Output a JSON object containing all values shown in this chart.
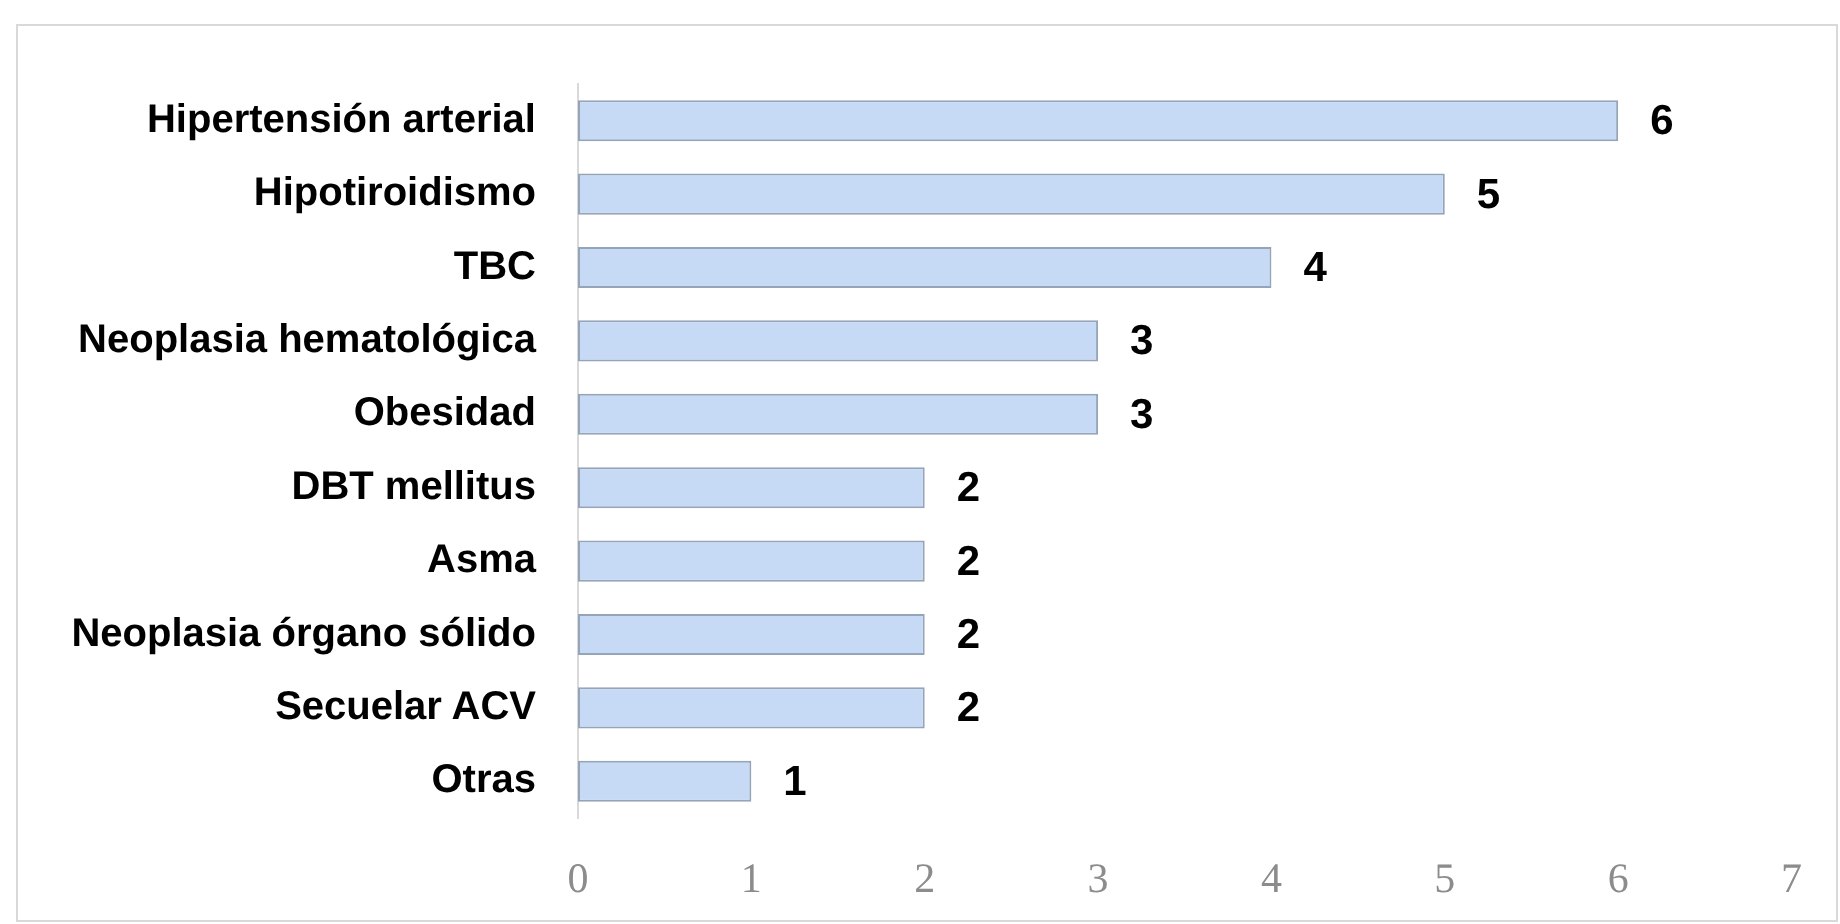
{
  "chart_data": {
    "type": "bar",
    "orientation": "horizontal",
    "categories": [
      "Hipertensión arterial",
      "Hipotiroidismo",
      "TBC",
      "Neoplasia hematológica",
      "Obesidad",
      "DBT mellitus",
      "Asma",
      "Neoplasia órgano sólido",
      "Secuelar ACV",
      "Otras"
    ],
    "values": [
      6,
      5,
      4,
      3,
      3,
      2,
      2,
      2,
      2,
      1
    ],
    "color": "#c6daf6",
    "xlim": [
      0,
      7
    ],
    "xticks": [
      0,
      1,
      2,
      3,
      4,
      5,
      6,
      7
    ],
    "data_labels": true
  }
}
